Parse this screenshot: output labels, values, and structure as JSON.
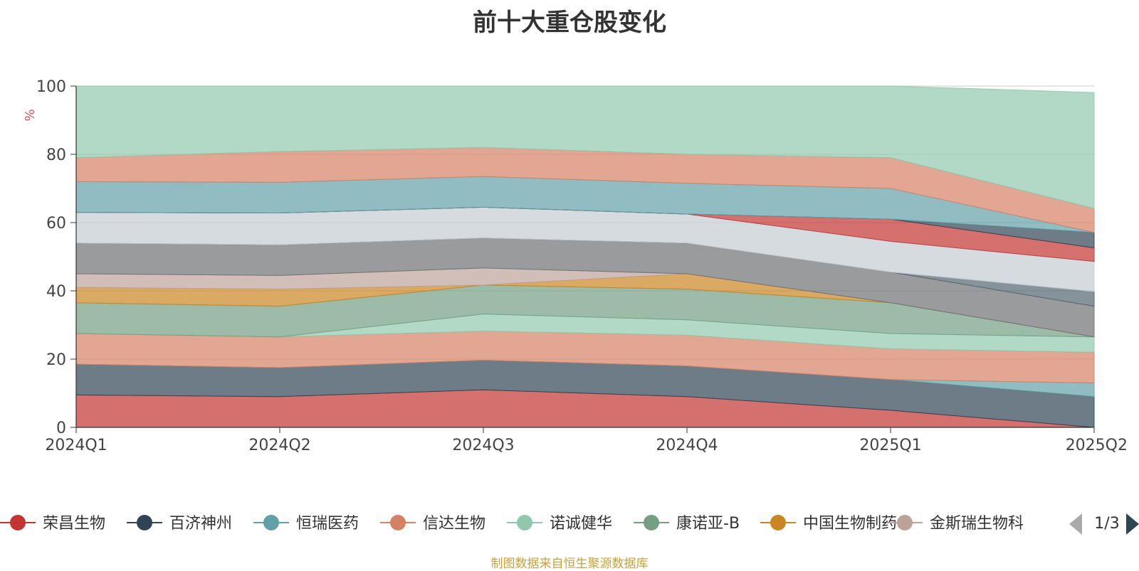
{
  "chart_data": {
    "type": "area",
    "stacked": true,
    "title": "前十大重仓股变化",
    "ylabel": "%",
    "xlabel": "",
    "ylim": [
      0,
      100
    ],
    "yticks": [
      0,
      20,
      40,
      60,
      80,
      100
    ],
    "categories": [
      "2024Q1",
      "2024Q2",
      "2024Q3",
      "2024Q4",
      "2025Q1",
      "2025Q2"
    ],
    "grid": true,
    "legend_position": "bottom",
    "series": [
      {
        "name": "荣昌生物",
        "color": "#c23531",
        "values": [
          9.5,
          9.0,
          11.0,
          9.0,
          5.0,
          0.0
        ]
      },
      {
        "name": "百济神州",
        "color": "#2f4554",
        "values": [
          9.0,
          8.5,
          8.7,
          9.0,
          9.0,
          9.0
        ]
      },
      {
        "name": "恒瑞医药",
        "color": "#61a0a8",
        "values": [
          0.0,
          0.0,
          0.0,
          0.0,
          0.0,
          4.0
        ]
      },
      {
        "name": "信达生物",
        "color": "#d48265",
        "values": [
          9.0,
          9.0,
          8.5,
          9.0,
          9.0,
          9.0
        ]
      },
      {
        "name": "诺诚健华",
        "color": "#91c7ae",
        "values": [
          0.0,
          0.0,
          5.0,
          4.5,
          4.5,
          4.5
        ]
      },
      {
        "name": "康诺亚-B",
        "color": "#749f83",
        "values": [
          9.0,
          9.0,
          8.5,
          9.0,
          9.0,
          0.0
        ]
      },
      {
        "name": "中国生物制药",
        "color": "#ca8622",
        "values": [
          4.5,
          5.0,
          0.0,
          4.5,
          0.0,
          0.0
        ]
      },
      {
        "name": "金斯瑞生物科技",
        "color": "#bda29a",
        "values": [
          4.0,
          4.0,
          5.0,
          0.0,
          0.0,
          0.0
        ]
      },
      {
        "name": "",
        "color": "#6e7074",
        "values": [
          9.0,
          9.0,
          8.8,
          9.0,
          9.0,
          9.0
        ]
      },
      {
        "name": "",
        "color": "#546570",
        "values": [
          0.0,
          0.0,
          0.0,
          0.0,
          0.0,
          4.3
        ]
      },
      {
        "name": "",
        "color": "#c4ccd3",
        "values": [
          9.0,
          9.3,
          9.0,
          8.5,
          9.0,
          8.8
        ]
      },
      {
        "name": "",
        "color": "#c23531",
        "values": [
          0.0,
          0.0,
          0.0,
          0.0,
          6.5,
          4.0
        ]
      },
      {
        "name": "",
        "color": "#2f4554",
        "values": [
          0.0,
          0.0,
          0.0,
          0.0,
          0.0,
          4.5
        ]
      },
      {
        "name": "",
        "color": "#61a0a8",
        "values": [
          9.0,
          9.0,
          9.0,
          9.0,
          9.0,
          0.0
        ]
      },
      {
        "name": "",
        "color": "#d48265",
        "values": [
          7.0,
          9.0,
          8.5,
          8.5,
          9.0,
          7.0
        ]
      },
      {
        "name": "",
        "color": "#91c7ae",
        "values": [
          21.0,
          19.2,
          18.0,
          20.0,
          21.0,
          34.0
        ]
      }
    ]
  },
  "legend": {
    "page_indicator": "1/3",
    "visible_labels": [
      "荣昌生物",
      "百济神州",
      "恒瑞医药",
      "信达生物",
      "诺诚健华",
      "康诺亚-B",
      "中国生物制药",
      "金斯瑞生物科"
    ]
  },
  "source_note": "制图数据来自恒生聚源数据库"
}
